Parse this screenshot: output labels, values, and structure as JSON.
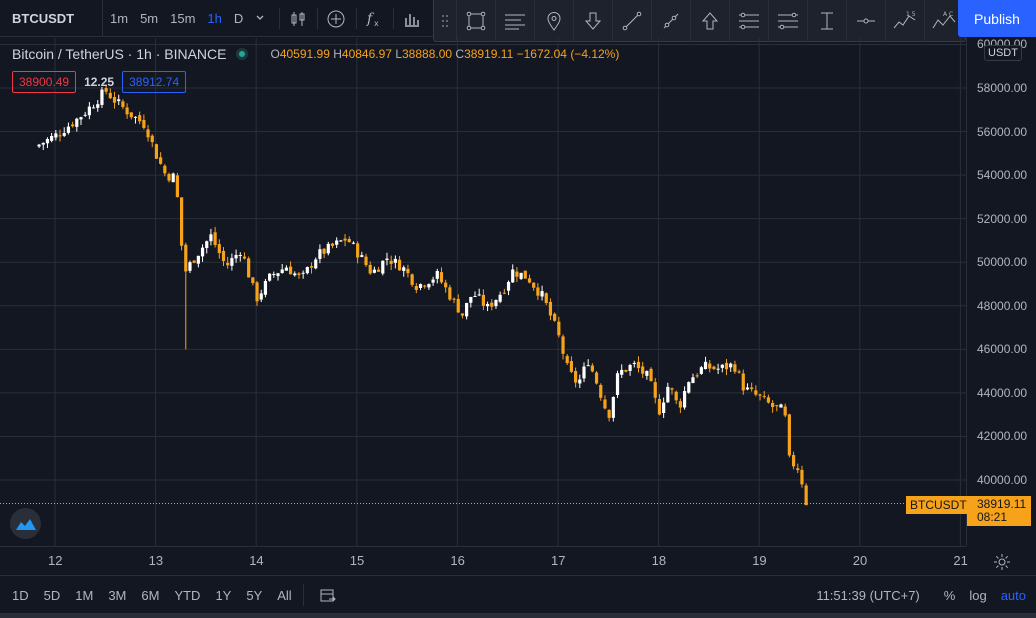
{
  "toolbar": {
    "symbol": "BTCUSDT",
    "intervals": [
      "1m",
      "5m",
      "15m",
      "1h",
      "D"
    ],
    "active_interval": "1h",
    "publish_label": "Publish"
  },
  "legend": {
    "title": "Bitcoin / TetherUS · 1h · BINANCE",
    "open_label": "O",
    "open": "40591.99",
    "high_label": "H",
    "high": "40846.97",
    "low_label": "L",
    "low": "38888.00",
    "close_label": "C",
    "close": "38919.11",
    "change": "−1672.04 (−4.12%)"
  },
  "quote": {
    "bid": "38900.49",
    "spread": "12.25",
    "ask": "38912.74"
  },
  "price_axis": {
    "currency": "USDT",
    "ticks": [
      "60000.00",
      "58000.00",
      "56000.00",
      "54000.00",
      "52000.00",
      "50000.00",
      "48000.00",
      "46000.00",
      "44000.00",
      "42000.00",
      "40000.00"
    ],
    "last_symbol": "BTCUSDT",
    "last_price": "38919.11",
    "countdown": "08:21"
  },
  "time_axis": {
    "ticks": [
      "12",
      "13",
      "14",
      "15",
      "16",
      "17",
      "18",
      "19",
      "20",
      "21"
    ]
  },
  "bottom": {
    "ranges": [
      "1D",
      "5D",
      "1M",
      "3M",
      "6M",
      "YTD",
      "1Y",
      "5Y",
      "All"
    ],
    "clock": "11:51:39 (UTC+7)",
    "percent": "%",
    "log": "log",
    "auto": "auto"
  },
  "colors": {
    "up": "#ffffff",
    "down": "#f7a21b",
    "accent": "#2962ff",
    "background": "#131722",
    "grid": "#2a2e39"
  },
  "chart_data": {
    "type": "candlestick",
    "title": "Bitcoin / TetherUS · 1h · BINANCE",
    "ylim": [
      38000,
      60000
    ],
    "x_ticks": [
      "12",
      "13",
      "14",
      "15",
      "16",
      "17",
      "18",
      "19",
      "20",
      "21"
    ],
    "close_path": [
      [
        11.8,
        55300
      ],
      [
        12.0,
        55800
      ],
      [
        12.2,
        56500
      ],
      [
        12.3,
        56900
      ],
      [
        12.45,
        57600
      ],
      [
        12.5,
        57900
      ],
      [
        12.6,
        57400
      ],
      [
        12.75,
        56800
      ],
      [
        12.9,
        56300
      ],
      [
        13.0,
        55000
      ],
      [
        13.1,
        54000
      ],
      [
        13.2,
        53900
      ],
      [
        13.25,
        51000
      ],
      [
        13.3,
        49600
      ],
      [
        13.4,
        50300
      ],
      [
        13.55,
        51200
      ],
      [
        13.7,
        49800
      ],
      [
        13.85,
        50600
      ],
      [
        14.0,
        48300
      ],
      [
        14.15,
        49400
      ],
      [
        14.3,
        49800
      ],
      [
        14.45,
        49200
      ],
      [
        14.6,
        50300
      ],
      [
        14.75,
        50700
      ],
      [
        14.9,
        51100
      ],
      [
        15.0,
        50500
      ],
      [
        15.15,
        49500
      ],
      [
        15.3,
        50200
      ],
      [
        15.45,
        49800
      ],
      [
        15.6,
        48900
      ],
      [
        15.8,
        49400
      ],
      [
        15.95,
        48300
      ],
      [
        16.05,
        47600
      ],
      [
        16.15,
        48600
      ],
      [
        16.3,
        47900
      ],
      [
        16.45,
        48700
      ],
      [
        16.55,
        49600
      ],
      [
        16.7,
        49300
      ],
      [
        16.85,
        48400
      ],
      [
        17.0,
        46700
      ],
      [
        17.1,
        45000
      ],
      [
        17.2,
        44400
      ],
      [
        17.3,
        45500
      ],
      [
        17.4,
        44300
      ],
      [
        17.5,
        42900
      ],
      [
        17.6,
        44900
      ],
      [
        17.75,
        45300
      ],
      [
        17.9,
        44700
      ],
      [
        18.0,
        43100
      ],
      [
        18.1,
        44400
      ],
      [
        18.2,
        43300
      ],
      [
        18.3,
        44600
      ],
      [
        18.45,
        45200
      ],
      [
        18.6,
        45100
      ],
      [
        18.75,
        45300
      ],
      [
        18.85,
        44200
      ],
      [
        19.0,
        43800
      ],
      [
        19.15,
        43300
      ],
      [
        19.25,
        43200
      ],
      [
        19.3,
        40900
      ],
      [
        19.4,
        40500
      ],
      [
        19.47,
        38900
      ]
    ]
  }
}
